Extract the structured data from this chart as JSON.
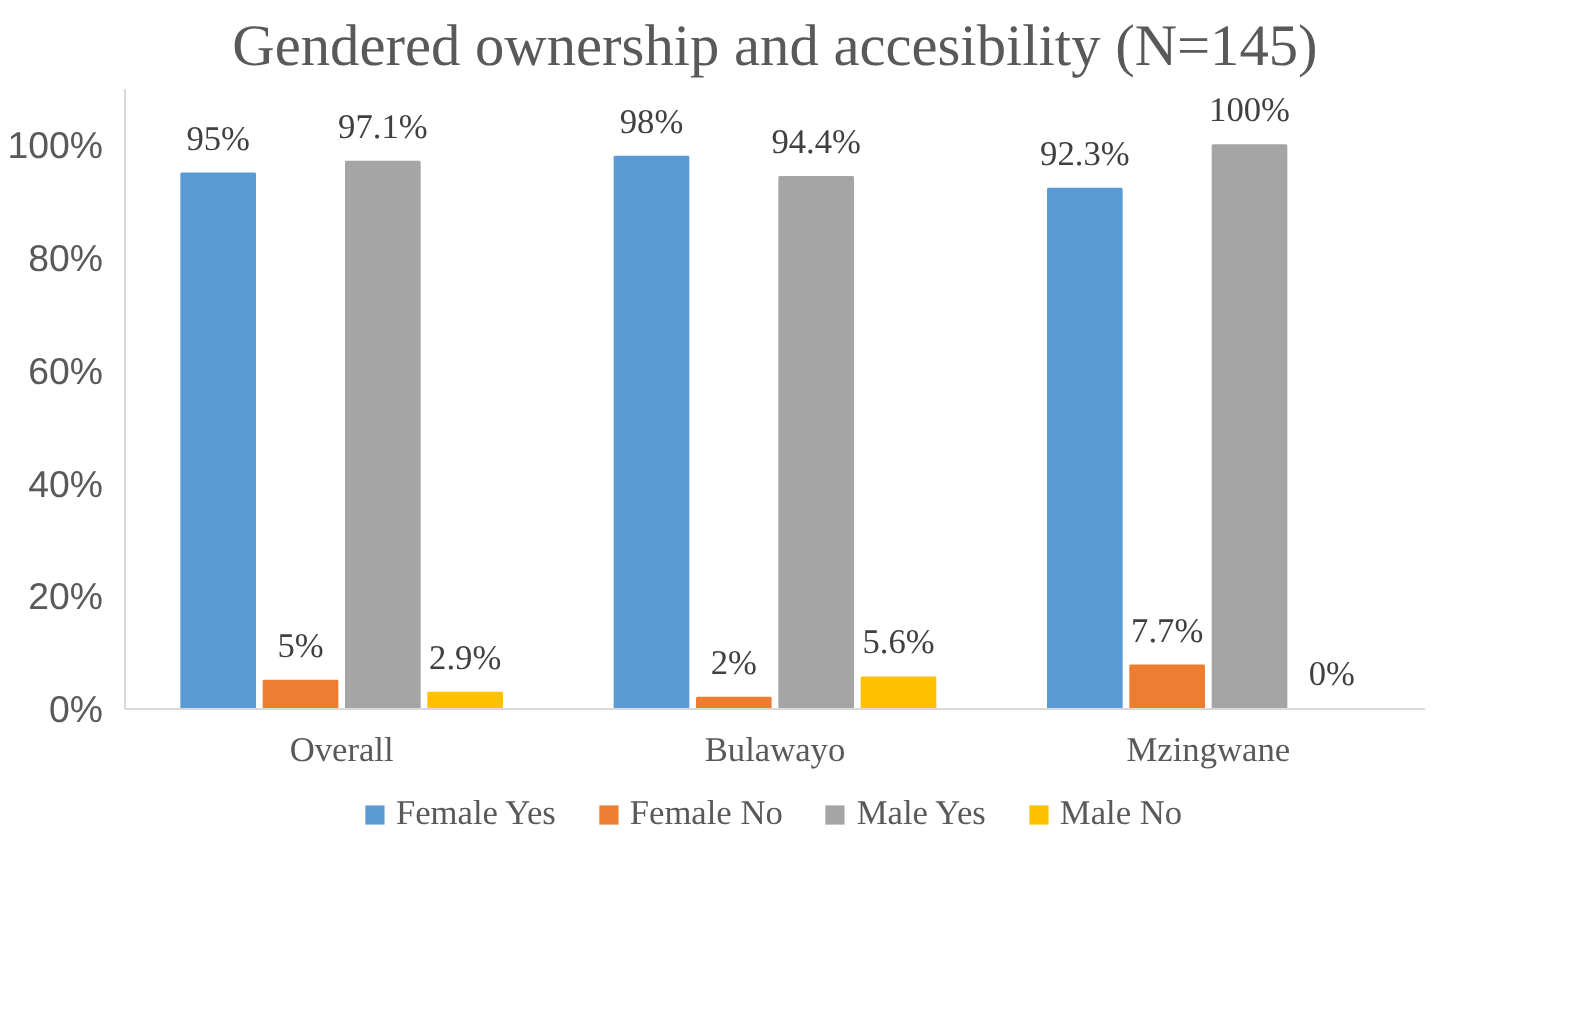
{
  "chart_data": {
    "type": "bar",
    "title": "Gendered ownership and accesibility (N=145)",
    "categories": [
      "Overall",
      "Bulawayo",
      "Mzingwane"
    ],
    "series": [
      {
        "name": "Female Yes",
        "color": "#5b9bd5",
        "values": [
          95,
          98,
          92.3
        ],
        "value_labels": [
          "95%",
          "98%",
          "92.3%"
        ]
      },
      {
        "name": "Female No",
        "color": "#ed7d31",
        "values": [
          5,
          2,
          7.7
        ],
        "value_labels": [
          "5%",
          "2%",
          "7.7%"
        ]
      },
      {
        "name": "Male Yes",
        "color": "#a5a5a5",
        "values": [
          97.1,
          94.4,
          100
        ],
        "value_labels": [
          "97.1%",
          "94.4%",
          "100%"
        ]
      },
      {
        "name": "Male No",
        "color": "#ffc000",
        "values": [
          2.9,
          5.6,
          0
        ],
        "value_labels": [
          "2.9%",
          "5.6%",
          "0%"
        ]
      }
    ],
    "ylim": [
      0,
      110
    ],
    "yticks": [
      {
        "value": 0,
        "label": "0%"
      },
      {
        "value": 20,
        "label": "20%"
      },
      {
        "value": 40,
        "label": "40%"
      },
      {
        "value": 60,
        "label": "60%"
      },
      {
        "value": 80,
        "label": "80%"
      },
      {
        "value": 100,
        "label": "100%"
      }
    ],
    "grid": false,
    "legend": "bottom"
  }
}
